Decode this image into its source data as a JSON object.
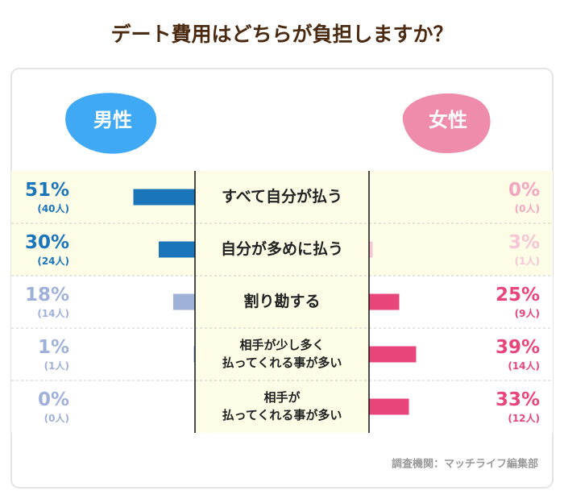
{
  "chart_data": {
    "type": "butterfly-bar",
    "title": "デート費用はどちらが負担しますか？",
    "categories": [
      [
        "すべて自分が払う"
      ],
      [
        "自分が多めに払う"
      ],
      [
        "割り勘する"
      ],
      [
        "相手が少し多く",
        "払ってくれる事が多い"
      ],
      [
        "相手が",
        "払ってくれる事が多い"
      ]
    ],
    "series": [
      {
        "name": "男性",
        "color": "#3fa9f5",
        "side": "left",
        "values": [
          51,
          30,
          18,
          1,
          0
        ],
        "value_labels": [
          "51%",
          "30%",
          "18%",
          "1%",
          "0%"
        ],
        "counts": [
          40,
          24,
          14,
          1,
          0
        ],
        "count_labels": [
          "(40人)",
          "(24人)",
          "(14人)",
          "(1人)",
          "(0人)"
        ],
        "colors": [
          "#1a75bb",
          "#1a75bb",
          "#9fb0d9",
          "#9fb0d9",
          "#9fb0d9"
        ]
      },
      {
        "name": "女性",
        "color": "#f08cab",
        "side": "right",
        "values": [
          0,
          3,
          25,
          39,
          33
        ],
        "value_labels": [
          "0%",
          "3%",
          "25%",
          "39%",
          "33%"
        ],
        "counts": [
          0,
          1,
          9,
          14,
          12
        ],
        "count_labels": [
          "(0人)",
          "(1人)",
          "(9人)",
          "(14人)",
          "(12人)"
        ],
        "colors": [
          "#f3a6c0",
          "#f6c6d6",
          "#e8457b",
          "#e8457b",
          "#e8457b"
        ]
      }
    ],
    "source": "調査機関：マッチライフ編集部"
  }
}
